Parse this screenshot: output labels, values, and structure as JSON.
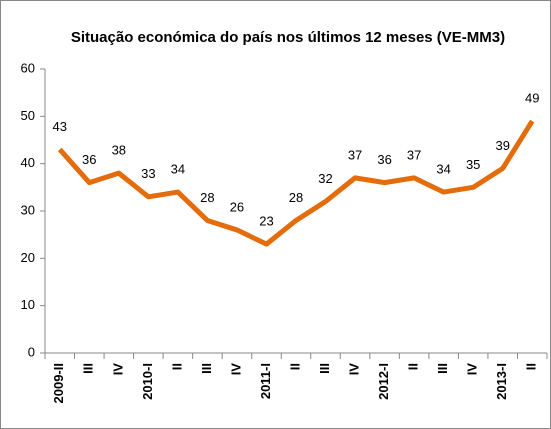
{
  "chart_data": {
    "type": "line",
    "title": "Situação económica do país nos últimos 12 meses (VE-MM3)",
    "categories": [
      "2009-II",
      "III",
      "IV",
      "2010-I",
      "II",
      "III",
      "IV",
      "2011-I",
      "II",
      "III",
      "IV",
      "2012-I",
      "II",
      "III",
      "IV",
      "2013-I",
      "II"
    ],
    "series": [
      {
        "name": "VE-MM3",
        "color": "#e46c0a",
        "values": [
          43,
          36,
          38,
          33,
          34,
          28,
          26,
          23,
          28,
          32,
          37,
          36,
          37,
          34,
          35,
          39,
          49
        ]
      }
    ],
    "ylim": [
      0,
      60
    ],
    "yticks": [
      0,
      10,
      20,
      30,
      40,
      50,
      60
    ],
    "grid": false
  }
}
